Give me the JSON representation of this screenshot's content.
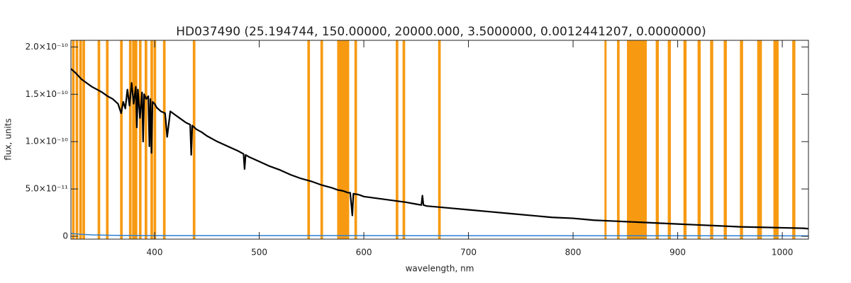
{
  "chart_data": {
    "type": "line",
    "title": "HD037490   (25.194744, 150.00000, 20000.000, 3.5000000, 0.0012441207, 0.0000000)",
    "x_label": "wavelength, nm",
    "y_label": "flux, units",
    "xlim": [
      320,
      1025
    ],
    "ylim": [
      -3e-12,
      2.07e-10
    ],
    "xticks": [
      400,
      500,
      600,
      700,
      800,
      900,
      1000
    ],
    "yticks": [
      {
        "value": 0,
        "label": "0"
      },
      {
        "value": 5e-11,
        "label": "5.0×10⁻¹¹"
      },
      {
        "value": 1e-10,
        "label": "1.0×10⁻¹⁰"
      },
      {
        "value": 1.5e-10,
        "label": "1.5×10⁻¹⁰"
      },
      {
        "value": 2e-10,
        "label": "2.0×10⁻¹⁰"
      }
    ],
    "mask_color": "#f79a12",
    "masks": [
      [
        321,
        323.5
      ],
      [
        324.5,
        327
      ],
      [
        328,
        330.5
      ],
      [
        331,
        333.5
      ],
      [
        345.5,
        348
      ],
      [
        353.5,
        356
      ],
      [
        367,
        369.5
      ],
      [
        375.5,
        378
      ],
      [
        378.5,
        381
      ],
      [
        381,
        383.5
      ],
      [
        385,
        387.5
      ],
      [
        390.5,
        393
      ],
      [
        396,
        398.5
      ],
      [
        399,
        401.5
      ],
      [
        408,
        410.5
      ],
      [
        436.5,
        439
      ],
      [
        546,
        548.5
      ],
      [
        558.5,
        561
      ],
      [
        574.5,
        586
      ],
      [
        591,
        593.5
      ],
      [
        630.5,
        633
      ],
      [
        637,
        639.5
      ],
      [
        671,
        673.5
      ],
      [
        830,
        832
      ],
      [
        842,
        844.5
      ],
      [
        851.5,
        870.5
      ],
      [
        879,
        882
      ],
      [
        890.5,
        893.5
      ],
      [
        905.5,
        908.5
      ],
      [
        919,
        922
      ],
      [
        931,
        934
      ],
      [
        944,
        947
      ],
      [
        959.5,
        962.5
      ],
      [
        976,
        980.5
      ],
      [
        991.5,
        996.5
      ],
      [
        1009.5,
        1012.5
      ]
    ],
    "series": [
      {
        "color": "#000000",
        "x": [
          320,
          325,
          330,
          335,
          340,
          345,
          350,
          355,
          360,
          365,
          368,
          370,
          372,
          374,
          376,
          378,
          380,
          382,
          383,
          384,
          386,
          388,
          389,
          390,
          392,
          394,
          395,
          396,
          397,
          398,
          400,
          402,
          404,
          406,
          410,
          412,
          415,
          420,
          425,
          430,
          434,
          435,
          436,
          440,
          445,
          450,
          460,
          470,
          480,
          485,
          486,
          487,
          490,
          500,
          510,
          520,
          530,
          540,
          550,
          560,
          570,
          575,
          580,
          585,
          587,
          589,
          590,
          595,
          600,
          620,
          640,
          650,
          655,
          656,
          657,
          660,
          680,
          700,
          720,
          740,
          760,
          780,
          800,
          820,
          840,
          860,
          880,
          900,
          920,
          940,
          960,
          980,
          1000,
          1020,
          1025
        ],
        "values": [
          1.77e-10,
          1.72e-10,
          1.66e-10,
          1.62e-10,
          1.58e-10,
          1.55e-10,
          1.52e-10,
          1.48e-10,
          1.45e-10,
          1.4e-10,
          1.3e-10,
          1.42e-10,
          1.35e-10,
          1.55e-10,
          1.38e-10,
          1.62e-10,
          1.4e-10,
          1.58e-10,
          1.15e-10,
          1.55e-10,
          1.25e-10,
          1.52e-10,
          1e-10,
          1.5e-10,
          1.45e-10,
          1.48e-10,
          9.5e-11,
          1.45e-10,
          8.8e-11,
          1.42e-10,
          1.4e-10,
          1.36e-10,
          1.34e-10,
          1.32e-10,
          1.3e-10,
          1.05e-10,
          1.32e-10,
          1.28e-10,
          1.24e-10,
          1.2e-10,
          1.18e-10,
          8.6e-11,
          1.17e-10,
          1.13e-10,
          1.1e-10,
          1.06e-10,
          1e-10,
          9.5e-11,
          9e-11,
          8.7e-11,
          7.1e-11,
          8.6e-11,
          8.4e-11,
          7.9e-11,
          7.4e-11,
          7e-11,
          6.5e-11,
          6.1e-11,
          5.8e-11,
          5.4e-11,
          5.1e-11,
          4.9e-11,
          4.8e-11,
          4.6e-11,
          4.6e-11,
          2.2e-11,
          4.5e-11,
          4.4e-11,
          4.2e-11,
          3.9e-11,
          3.6e-11,
          3.4e-11,
          3.3e-11,
          4.3e-11,
          3.3e-11,
          3.2e-11,
          3e-11,
          2.8e-11,
          2.6e-11,
          2.4e-11,
          2.2e-11,
          2e-11,
          1.9e-11,
          1.7e-11,
          1.6e-11,
          1.5e-11,
          1.4e-11,
          1.3e-11,
          1.2e-11,
          1.1e-11,
          1e-11,
          9.5e-12,
          9e-12,
          8.5e-12,
          8e-12
        ]
      },
      {
        "color": "#2a7fd4",
        "x": [
          320,
          330,
          340,
          360,
          380,
          1025
        ],
        "values": [
          3e-12,
          2e-12,
          1.5e-12,
          1e-12,
          8e-13,
          5e-13
        ]
      }
    ]
  }
}
